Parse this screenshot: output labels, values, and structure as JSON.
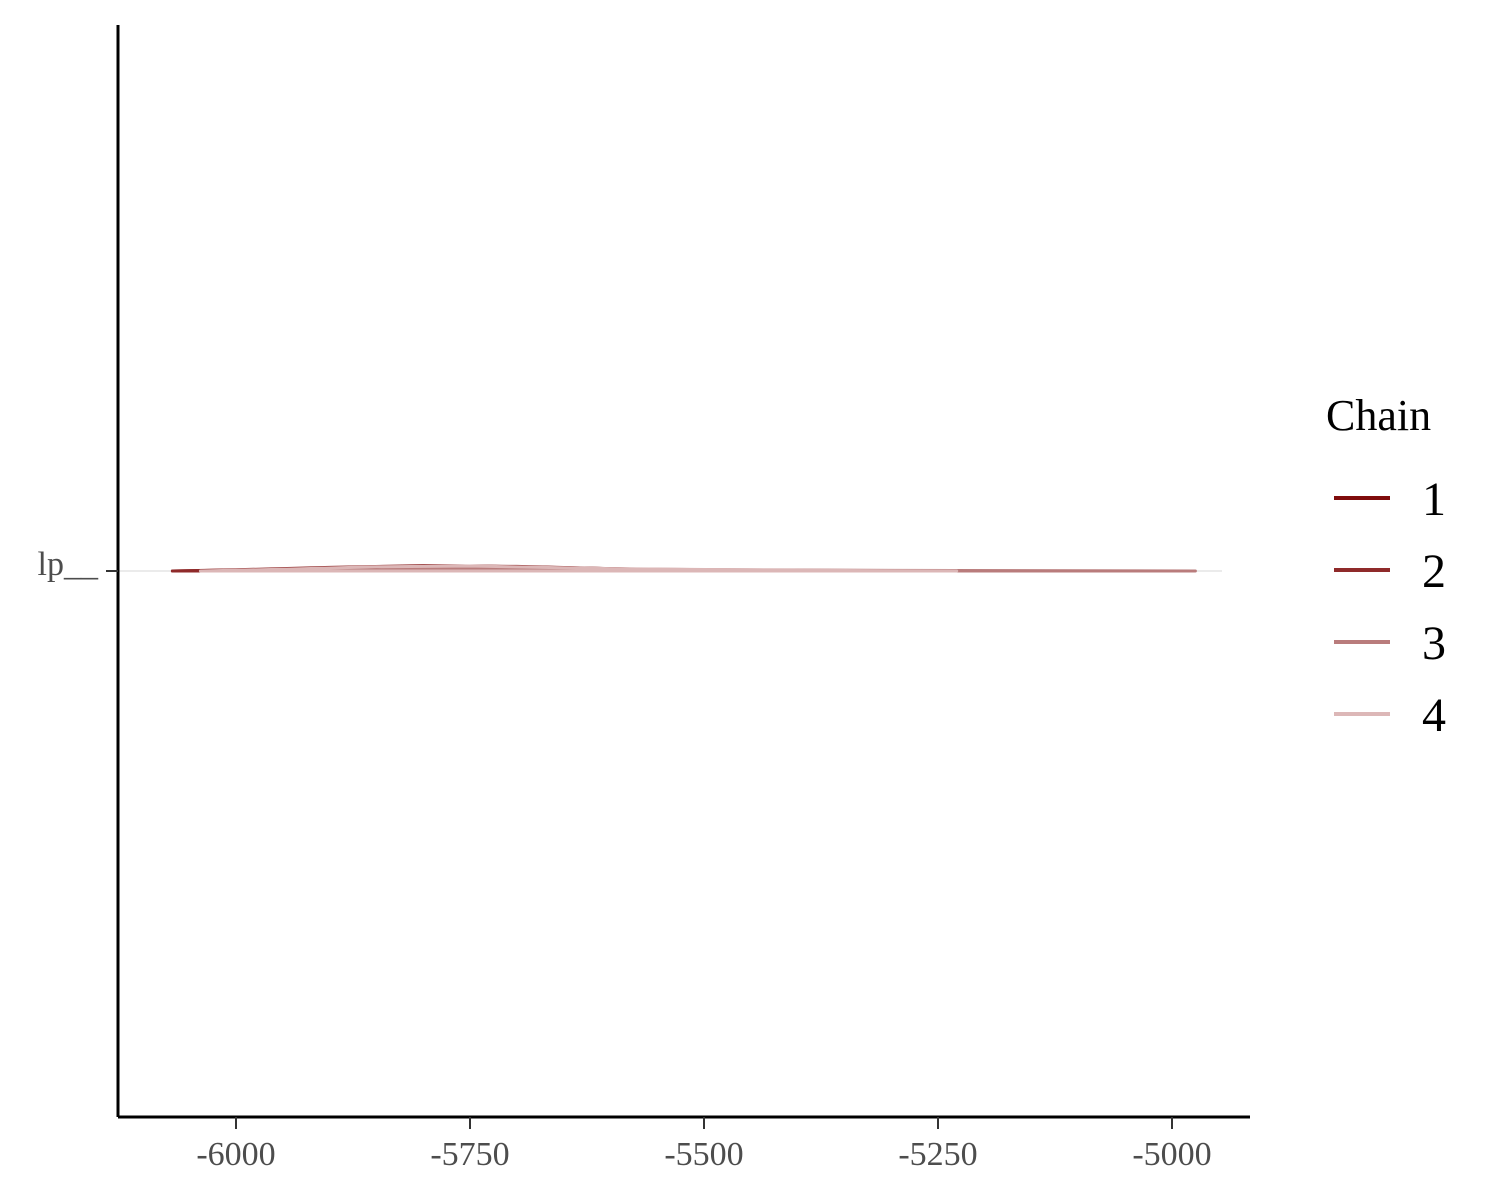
{
  "chart_data": {
    "type": "line",
    "subtype": "density-ridge",
    "title": "",
    "xlabel": "",
    "ylabel": "",
    "xlim": [
      -6125,
      -4925
    ],
    "x_ticks": [
      -6000,
      -5750,
      -5500,
      -5250,
      -5000
    ],
    "x_tick_labels": [
      "-6000",
      "-5750",
      "-5500",
      "-5250",
      "-5000"
    ],
    "y_categories": [
      "lp__"
    ],
    "y_tick_labels": [
      "lp__"
    ],
    "grid": false,
    "legend": {
      "title": "Chain",
      "position": "right",
      "entries": [
        "1",
        "2",
        "3",
        "4"
      ]
    },
    "series": [
      {
        "name": "1",
        "color": "#7f0c0c",
        "x": [
          -6068,
          -6000,
          -5900,
          -5820,
          -5750,
          -5650,
          -5550,
          -5460
        ],
        "height": [
          0.0,
          0.08,
          0.22,
          0.38,
          0.42,
          0.28,
          0.1,
          0.0
        ]
      },
      {
        "name": "2",
        "color": "#8f2a2a",
        "x": [
          -6068,
          -6000,
          -5900,
          -5800,
          -5700,
          -5600,
          -5500,
          -5460
        ],
        "height": [
          0.0,
          0.1,
          0.3,
          0.45,
          0.38,
          0.2,
          0.05,
          0.0
        ]
      },
      {
        "name": "3",
        "color": "#b97c7c",
        "x": [
          -5980,
          -5850,
          -5700,
          -5500,
          -5300,
          -5100,
          -4975
        ],
        "height": [
          0.0,
          0.12,
          0.25,
          0.12,
          0.05,
          0.02,
          0.0
        ]
      },
      {
        "name": "4",
        "color": "#dcb7b7",
        "x": [
          -6038,
          -5950,
          -5850,
          -5750,
          -5600,
          -5400,
          -5230
        ],
        "height": [
          0.0,
          0.15,
          0.35,
          0.42,
          0.2,
          0.06,
          0.0
        ]
      }
    ]
  }
}
